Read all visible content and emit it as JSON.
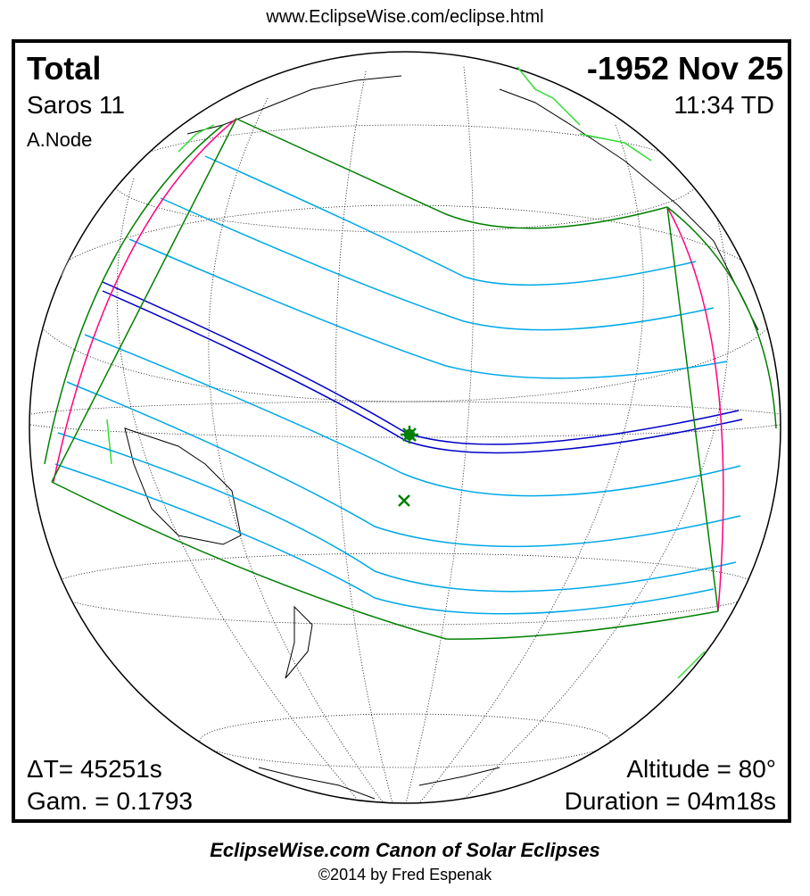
{
  "header": {
    "url": "www.EclipseWise.com/eclipse.html"
  },
  "eclipse": {
    "type": "Total",
    "date": "-1952 Nov 25",
    "saros": "Saros  11",
    "time": "11:34 TD",
    "node": "A.Node",
    "delta_t": "ΔT=  45251s",
    "gamma": "Gam. = 0.1793",
    "altitude": "Altitude = 80°",
    "duration": "Duration = 04m18s"
  },
  "footer": {
    "title": "EclipseWise.com Canon of Solar Eclipses",
    "copyright": "©2014 by Fred Espenak"
  },
  "colors": {
    "penumbra_limits": "#008000",
    "umbra_path": "#0000c8",
    "hourly_lines": "#00a8e8",
    "rise_set_curves": "#ff0080",
    "coastline": "#000000",
    "greatest_eclipse_marker": "#008000",
    "twilight_band": "#c0c0c0"
  }
}
